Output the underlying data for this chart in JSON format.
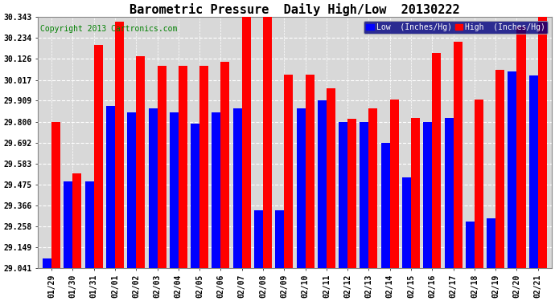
{
  "title": "Barometric Pressure  Daily High/Low  20130222",
  "copyright": "Copyright 2013 Cartronics.com",
  "dates": [
    "01/29",
    "01/30",
    "01/31",
    "02/01",
    "02/02",
    "02/03",
    "02/04",
    "02/05",
    "02/06",
    "02/07",
    "02/08",
    "02/09",
    "02/10",
    "02/11",
    "02/12",
    "02/13",
    "02/14",
    "02/15",
    "02/16",
    "02/17",
    "02/18",
    "02/19",
    "02/20",
    "02/21"
  ],
  "low_values": [
    29.09,
    29.49,
    29.49,
    29.88,
    29.85,
    29.87,
    29.85,
    29.79,
    29.85,
    29.87,
    29.34,
    29.34,
    29.87,
    29.91,
    29.8,
    29.8,
    29.69,
    29.51,
    29.8,
    29.82,
    29.28,
    29.3,
    30.06,
    30.04
  ],
  "high_values": [
    29.8,
    29.53,
    30.2,
    30.32,
    30.14,
    30.09,
    30.09,
    30.09,
    30.11,
    30.355,
    30.355,
    30.045,
    30.045,
    29.975,
    29.815,
    29.87,
    29.915,
    29.82,
    30.155,
    30.215,
    29.915,
    30.07,
    30.295,
    30.343
  ],
  "ylim_min": 29.041,
  "ylim_max": 30.343,
  "yticks": [
    29.041,
    29.149,
    29.258,
    29.366,
    29.475,
    29.583,
    29.692,
    29.8,
    29.909,
    30.017,
    30.126,
    30.234,
    30.343
  ],
  "low_color": "#0000ff",
  "high_color": "#ff0000",
  "bg_color": "#ffffff",
  "plot_bg_color": "#d8d8d8",
  "grid_color": "#ffffff",
  "title_fontsize": 11,
  "copyright_fontsize": 7,
  "tick_fontsize": 7,
  "legend_low_label": "Low  (Inches/Hg)",
  "legend_high_label": "High  (Inches/Hg)"
}
